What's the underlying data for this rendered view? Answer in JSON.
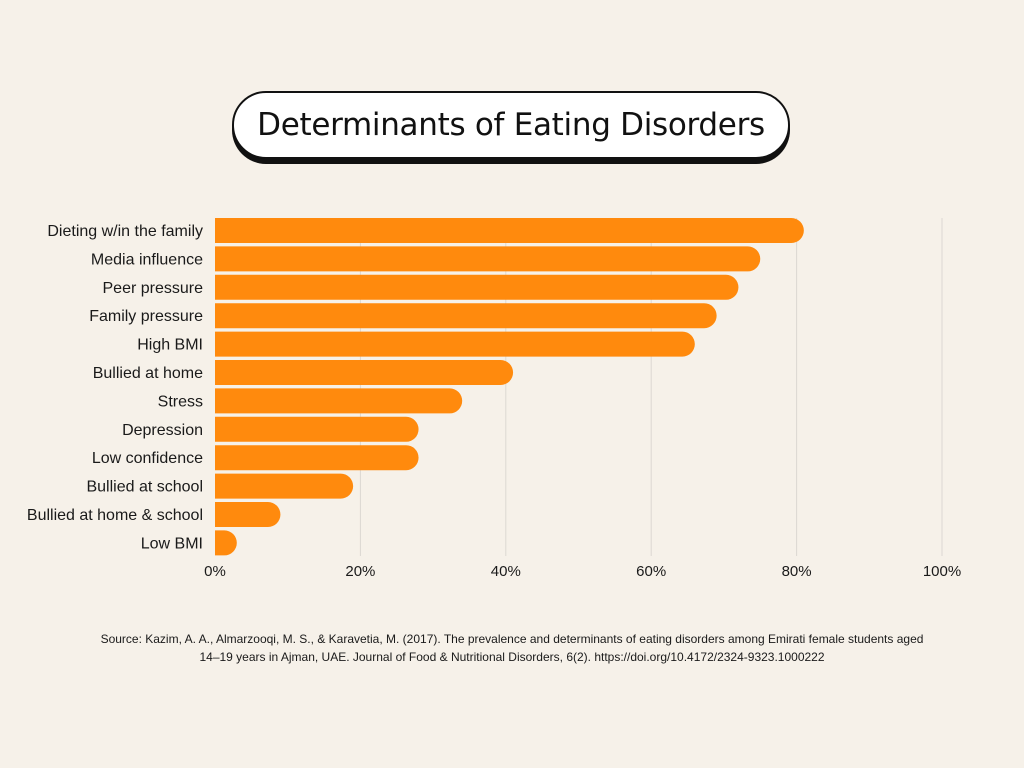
{
  "colors": {
    "background": "#f6f1e9",
    "bar": "#ff8a0d",
    "grid": "#dcd8d2",
    "title_box": "#ffffff",
    "text": "#1a1a1a"
  },
  "chart_data": {
    "type": "bar",
    "orientation": "horizontal",
    "title": "Determinants of Eating Disorders",
    "categories": [
      "Dieting w/in the family",
      "Media influence",
      "Peer pressure",
      "Family pressure",
      "High BMI",
      "Bullied at home",
      "Stress",
      "Depression",
      "Low confidence",
      "Bullied at school",
      "Bullied at home & school",
      "Low BMI"
    ],
    "values": [
      81,
      75,
      72,
      69,
      66,
      41,
      34,
      28,
      28,
      19,
      9,
      3
    ],
    "unit": "%",
    "xlim": [
      0,
      100
    ],
    "xticks": [
      0,
      20,
      40,
      60,
      80,
      100
    ],
    "xtick_labels": [
      "0%",
      "20%",
      "40%",
      "60%",
      "80%",
      "100%"
    ],
    "grid": "vertical",
    "legend": "none",
    "source": "Source: Kazim, A. A., Almarzooqi, M. S., & Karavetia, M. (2017). The prevalence and determinants of eating disorders among Emirati female students aged 14–19 years in Ajman, UAE. Journal of Food & Nutritional Disorders, 6(2). https://doi.org/10.4172/2324-9323.1000222"
  }
}
